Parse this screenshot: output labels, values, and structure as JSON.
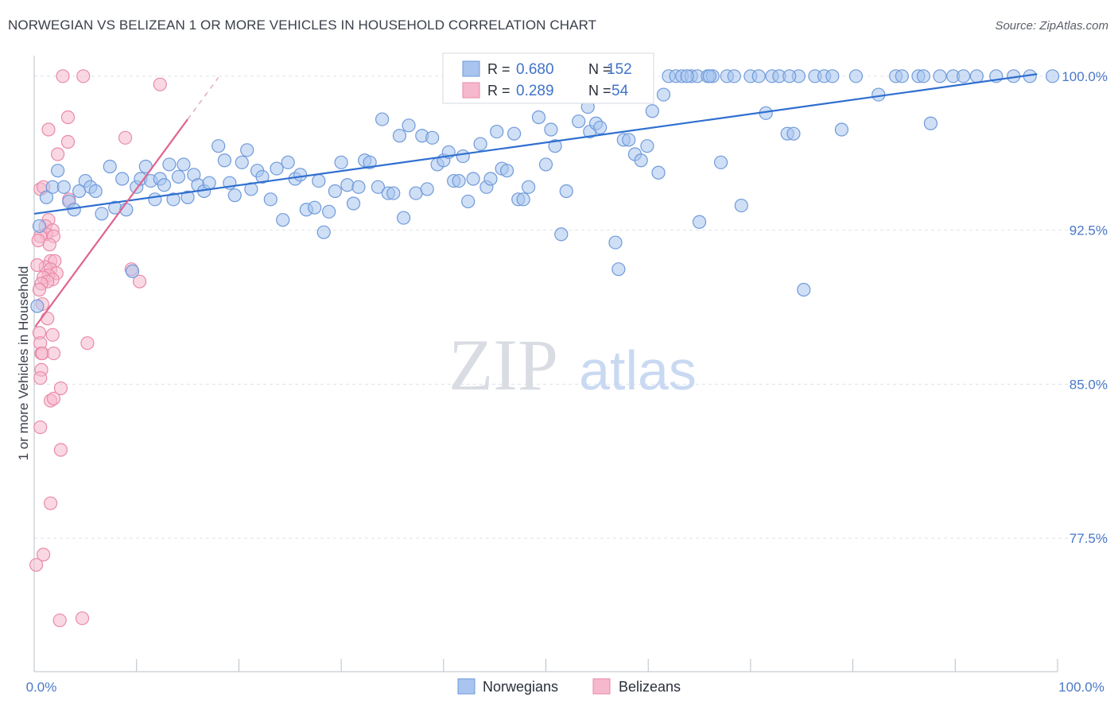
{
  "header": {
    "title": "NORWEGIAN VS BELIZEAN 1 OR MORE VEHICLES IN HOUSEHOLD CORRELATION CHART",
    "source": "Source: ZipAtlas.com"
  },
  "watermark": {
    "zip": "ZIP",
    "atlas": "atlas"
  },
  "legend": {
    "rows": [
      {
        "r_label": "R =",
        "r_value": "0.680",
        "n_label": "N =",
        "n_value": "152"
      },
      {
        "r_label": "R =",
        "r_value": "0.289",
        "n_label": "N =",
        "n_value": "54"
      }
    ]
  },
  "bottom_legend": [
    "Norwegians",
    "Belizeans"
  ],
  "colors": {
    "blue_fill": "#a8c4ef",
    "blue_stroke": "#6f9ad9",
    "blue_line": "#2f6fd0",
    "pink_fill": "#f6b8cc",
    "pink_stroke": "#e98aa8",
    "pink_line": "#e0648f",
    "tick_text": "#4a78c8",
    "grid": "#dde3ea"
  },
  "chart_data": {
    "type": "scatter",
    "title": "NORWEGIAN VS BELIZEAN 1 OR MORE VEHICLES IN HOUSEHOLD CORRELATION CHART",
    "xlabel": "",
    "ylabel": "1 or more Vehicles in Household",
    "xlim": [
      0,
      100
    ],
    "ylim": [
      71.0,
      101.0
    ],
    "x_ticks": [
      "0.0%",
      "100.0%"
    ],
    "y_ticks": [
      {
        "value": 100.0,
        "label": "100.0%"
      },
      {
        "value": 92.5,
        "label": "92.5%"
      },
      {
        "value": 85.0,
        "label": "85.0%"
      },
      {
        "value": 77.5,
        "label": "77.5%"
      }
    ],
    "grid": true,
    "series": [
      {
        "name": "Norwegians",
        "r": 0.68,
        "n": 152,
        "trend": {
          "x": [
            0,
            98
          ],
          "y": [
            93.3,
            100.1
          ]
        },
        "points": [
          [
            0.3,
            88.8
          ],
          [
            0.5,
            92.7
          ],
          [
            1.2,
            94.1
          ],
          [
            1.8,
            94.6
          ],
          [
            2.3,
            95.4
          ],
          [
            2.9,
            94.6
          ],
          [
            3.4,
            93.9
          ],
          [
            3.9,
            93.5
          ],
          [
            4.4,
            94.4
          ],
          [
            5.0,
            94.9
          ],
          [
            5.5,
            94.6
          ],
          [
            6.0,
            94.4
          ],
          [
            6.6,
            93.3
          ],
          [
            7.4,
            95.6
          ],
          [
            7.9,
            93.6
          ],
          [
            8.6,
            95.0
          ],
          [
            9.0,
            93.5
          ],
          [
            9.6,
            90.5
          ],
          [
            10.0,
            94.6
          ],
          [
            10.4,
            95.0
          ],
          [
            10.9,
            95.6
          ],
          [
            11.4,
            94.9
          ],
          [
            11.8,
            94.0
          ],
          [
            12.3,
            95.0
          ],
          [
            12.7,
            94.7
          ],
          [
            13.2,
            95.7
          ],
          [
            13.6,
            94.0
          ],
          [
            14.1,
            95.1
          ],
          [
            14.6,
            95.7
          ],
          [
            15.0,
            94.1
          ],
          [
            15.6,
            95.2
          ],
          [
            16.0,
            94.7
          ],
          [
            16.6,
            94.4
          ],
          [
            17.1,
            94.8
          ],
          [
            18.0,
            96.6
          ],
          [
            18.6,
            95.9
          ],
          [
            19.1,
            94.8
          ],
          [
            19.6,
            94.2
          ],
          [
            20.3,
            95.8
          ],
          [
            20.8,
            96.4
          ],
          [
            21.2,
            94.5
          ],
          [
            21.8,
            95.4
          ],
          [
            22.3,
            95.1
          ],
          [
            23.1,
            94.0
          ],
          [
            23.7,
            95.5
          ],
          [
            24.3,
            93.0
          ],
          [
            24.8,
            95.8
          ],
          [
            25.5,
            95.0
          ],
          [
            26.0,
            95.2
          ],
          [
            26.6,
            93.5
          ],
          [
            27.4,
            93.6
          ],
          [
            27.8,
            94.9
          ],
          [
            28.3,
            92.4
          ],
          [
            28.8,
            93.4
          ],
          [
            29.4,
            94.4
          ],
          [
            30.0,
            95.8
          ],
          [
            30.6,
            94.7
          ],
          [
            31.2,
            93.8
          ],
          [
            31.7,
            94.6
          ],
          [
            32.3,
            95.9
          ],
          [
            32.8,
            95.8
          ],
          [
            33.6,
            94.6
          ],
          [
            34.0,
            97.9
          ],
          [
            34.6,
            94.3
          ],
          [
            35.1,
            94.3
          ],
          [
            35.7,
            97.1
          ],
          [
            36.1,
            93.1
          ],
          [
            36.6,
            97.6
          ],
          [
            37.3,
            94.3
          ],
          [
            37.9,
            97.1
          ],
          [
            38.4,
            94.5
          ],
          [
            38.9,
            97.0
          ],
          [
            39.4,
            95.7
          ],
          [
            40.0,
            95.9
          ],
          [
            40.5,
            96.3
          ],
          [
            41.0,
            94.9
          ],
          [
            41.5,
            94.9
          ],
          [
            41.9,
            96.1
          ],
          [
            42.4,
            93.9
          ],
          [
            42.9,
            95.0
          ],
          [
            43.6,
            96.7
          ],
          [
            44.2,
            94.6
          ],
          [
            44.6,
            95.0
          ],
          [
            45.2,
            97.3
          ],
          [
            45.7,
            95.5
          ],
          [
            46.2,
            95.4
          ],
          [
            46.9,
            97.2
          ],
          [
            47.3,
            94.0
          ],
          [
            47.8,
            94.0
          ],
          [
            48.3,
            94.6
          ],
          [
            48.7,
            100.0
          ],
          [
            49.3,
            98.0
          ],
          [
            50.0,
            95.7
          ],
          [
            50.5,
            97.4
          ],
          [
            50.9,
            96.6
          ],
          [
            51.5,
            92.3
          ],
          [
            52.0,
            94.4
          ],
          [
            52.7,
            100.0
          ],
          [
            53.2,
            97.8
          ],
          [
            53.7,
            99.0
          ],
          [
            54.3,
            97.3
          ],
          [
            54.9,
            97.7
          ],
          [
            55.3,
            97.5
          ],
          [
            56.2,
            99.0
          ],
          [
            56.8,
            91.9
          ],
          [
            57.1,
            90.6
          ],
          [
            57.6,
            96.9
          ],
          [
            58.1,
            96.9
          ],
          [
            58.7,
            96.2
          ],
          [
            59.3,
            95.9
          ],
          [
            59.9,
            96.6
          ],
          [
            60.4,
            98.3
          ],
          [
            61.0,
            95.3
          ],
          [
            61.5,
            99.1
          ],
          [
            62.0,
            100.0
          ],
          [
            62.7,
            100.0
          ],
          [
            63.3,
            100.0
          ],
          [
            64.2,
            100.0
          ],
          [
            64.8,
            100.0
          ],
          [
            65.0,
            92.9
          ],
          [
            65.8,
            100.0
          ],
          [
            66.3,
            100.0
          ],
          [
            67.1,
            95.8
          ],
          [
            67.7,
            100.0
          ],
          [
            68.4,
            100.0
          ],
          [
            69.1,
            93.7
          ],
          [
            70.0,
            100.0
          ],
          [
            70.8,
            100.0
          ],
          [
            71.5,
            98.2
          ],
          [
            72.1,
            100.0
          ],
          [
            72.8,
            100.0
          ],
          [
            73.6,
            97.2
          ],
          [
            74.2,
            97.2
          ],
          [
            75.2,
            89.6
          ],
          [
            76.3,
            100.0
          ],
          [
            77.2,
            100.0
          ],
          [
            78.0,
            100.0
          ],
          [
            78.9,
            97.4
          ],
          [
            80.3,
            100.0
          ],
          [
            82.5,
            99.1
          ],
          [
            84.2,
            100.0
          ],
          [
            84.8,
            100.0
          ],
          [
            86.4,
            100.0
          ],
          [
            87.6,
            97.7
          ],
          [
            88.5,
            100.0
          ],
          [
            89.8,
            100.0
          ],
          [
            92.1,
            100.0
          ],
          [
            94.0,
            100.0
          ],
          [
            95.7,
            100.0
          ],
          [
            97.3,
            100.0
          ],
          [
            99.5,
            100.0
          ],
          [
            90.8,
            100.0
          ],
          [
            86.9,
            100.0
          ],
          [
            74.7,
            100.0
          ],
          [
            73.8,
            100.0
          ],
          [
            66.0,
            100.0
          ],
          [
            63.8,
            100.0
          ],
          [
            54.1,
            98.5
          ],
          [
            51.3,
            99.3
          ],
          [
            43.0,
            99.0
          ]
        ]
      },
      {
        "name": "Belizeans",
        "r": 0.289,
        "n": 54,
        "trend": {
          "x": [
            0.1,
            15.0
          ],
          "y": [
            87.8,
            97.9
          ]
        },
        "points": [
          [
            2.8,
            100.0
          ],
          [
            4.8,
            100.0
          ],
          [
            12.3,
            99.6
          ],
          [
            3.3,
            98.0
          ],
          [
            1.4,
            97.4
          ],
          [
            3.3,
            96.8
          ],
          [
            8.9,
            97.0
          ],
          [
            2.3,
            96.2
          ],
          [
            0.6,
            94.5
          ],
          [
            0.9,
            94.6
          ],
          [
            3.4,
            94.0
          ],
          [
            1.4,
            93.0
          ],
          [
            1.1,
            92.7
          ],
          [
            1.8,
            92.5
          ],
          [
            1.2,
            92.3
          ],
          [
            1.9,
            92.2
          ],
          [
            0.6,
            92.2
          ],
          [
            0.4,
            92.0
          ],
          [
            1.5,
            91.8
          ],
          [
            1.6,
            91.0
          ],
          [
            2.0,
            91.0
          ],
          [
            1.1,
            90.7
          ],
          [
            1.6,
            90.6
          ],
          [
            2.2,
            90.4
          ],
          [
            1.4,
            90.3
          ],
          [
            0.9,
            90.2
          ],
          [
            1.8,
            90.1
          ],
          [
            1.3,
            90.0
          ],
          [
            0.7,
            89.9
          ],
          [
            0.5,
            89.6
          ],
          [
            0.8,
            88.9
          ],
          [
            9.5,
            90.6
          ],
          [
            10.3,
            90.0
          ],
          [
            1.3,
            88.2
          ],
          [
            0.5,
            87.5
          ],
          [
            1.8,
            87.4
          ],
          [
            5.2,
            87.0
          ],
          [
            0.6,
            87.0
          ],
          [
            0.7,
            86.5
          ],
          [
            0.8,
            86.5
          ],
          [
            1.9,
            86.5
          ],
          [
            0.7,
            85.7
          ],
          [
            0.6,
            85.3
          ],
          [
            2.6,
            84.8
          ],
          [
            1.6,
            84.2
          ],
          [
            1.9,
            84.3
          ],
          [
            0.6,
            82.9
          ],
          [
            2.6,
            81.8
          ],
          [
            1.6,
            79.2
          ],
          [
            0.9,
            76.7
          ],
          [
            0.2,
            76.2
          ],
          [
            2.5,
            73.5
          ],
          [
            4.7,
            73.6
          ],
          [
            0.3,
            90.8
          ]
        ]
      }
    ]
  }
}
